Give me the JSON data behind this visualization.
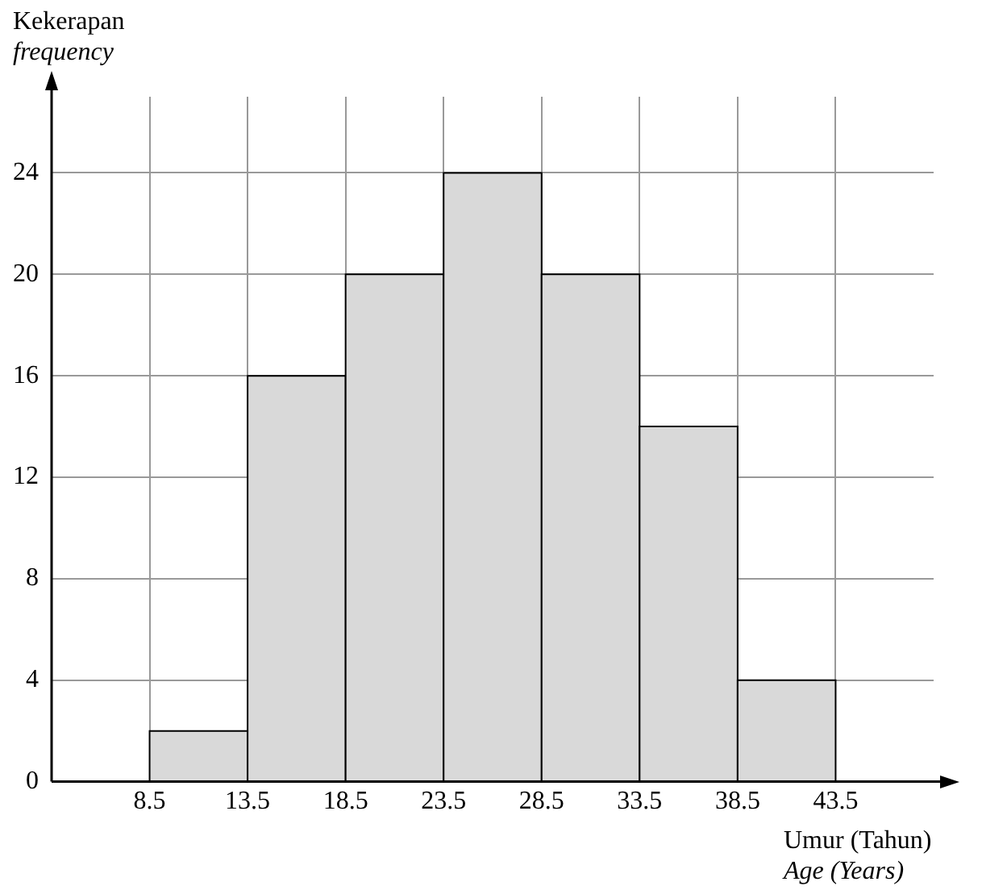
{
  "chart_data": {
    "type": "histogram",
    "xlabel": "Umur (Tahun)\nAge (Years)",
    "ylabel": "Kekerapan\nfrequency",
    "bins": [
      8.5,
      13.5,
      18.5,
      23.5,
      28.5,
      33.5,
      38.5,
      43.5
    ],
    "values": [
      2,
      16,
      20,
      24,
      20,
      14,
      4
    ],
    "color": "#d9d9d9",
    "xlim": [
      3.5,
      48.5
    ],
    "xticks": [
      8.5,
      13.5,
      18.5,
      23.5,
      28.5,
      33.5,
      38.5,
      43.5
    ],
    "ylim": [
      0,
      27
    ],
    "yticks": [
      0,
      4,
      8,
      12,
      16,
      20,
      24
    ],
    "grid": true,
    "legend": false
  }
}
